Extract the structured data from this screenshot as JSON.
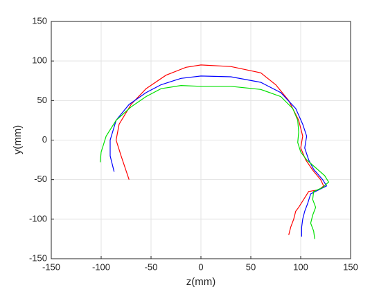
{
  "chart_data": {
    "type": "line",
    "xlabel": "z(mm)",
    "ylabel": "y(mm)",
    "xlim": [
      -150,
      150
    ],
    "ylim": [
      -150,
      150
    ],
    "xticks": [
      -150,
      -100,
      -50,
      0,
      50,
      100,
      150
    ],
    "yticks": [
      -150,
      -100,
      -50,
      0,
      50,
      100,
      150
    ],
    "grid": true,
    "series": [
      {
        "color": "#ff0000",
        "x": [
          -72,
          -80,
          -85,
          -82,
          -70,
          -55,
          -35,
          -15,
          0,
          30,
          60,
          75,
          88,
          98,
          102,
          100,
          105,
          112,
          120,
          123,
          118,
          108,
          103,
          98,
          95,
          93,
          90,
          88
        ],
        "values": [
          -50,
          -20,
          0,
          20,
          45,
          65,
          82,
          92,
          95,
          93,
          85,
          70,
          50,
          25,
          5,
          -10,
          -25,
          -38,
          -50,
          -58,
          -63,
          -65,
          -75,
          -85,
          -90,
          -100,
          -110,
          -120
        ]
      },
      {
        "color": "#0000ff",
        "x": [
          -87,
          -91,
          -91,
          -85,
          -72,
          -55,
          -40,
          -20,
          0,
          30,
          60,
          80,
          95,
          102,
          106,
          104,
          108,
          113,
          122,
          126,
          118,
          110,
          107,
          104,
          102,
          101,
          101
        ],
        "values": [
          -40,
          -20,
          0,
          25,
          45,
          60,
          70,
          78,
          81,
          80,
          73,
          60,
          40,
          20,
          5,
          -10,
          -25,
          -37,
          -50,
          -58,
          -63,
          -68,
          -80,
          -90,
          -100,
          -110,
          -122
        ]
      },
      {
        "color": "#00e000",
        "x": [
          -101,
          -100,
          -95,
          -85,
          -70,
          -55,
          -40,
          -20,
          0,
          30,
          60,
          80,
          92,
          97,
          98,
          97,
          100,
          106,
          115,
          124,
          128,
          122,
          113,
          112,
          115,
          112,
          110,
          113,
          114
        ],
        "values": [
          -28,
          -15,
          5,
          25,
          42,
          55,
          65,
          69,
          68,
          68,
          64,
          55,
          40,
          25,
          10,
          -3,
          -15,
          -25,
          -35,
          -45,
          -53,
          -60,
          -65,
          -75,
          -85,
          -95,
          -105,
          -115,
          -125
        ]
      }
    ]
  }
}
